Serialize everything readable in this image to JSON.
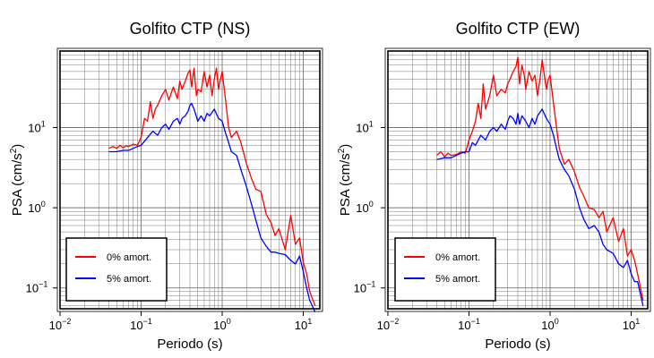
{
  "chart_data": [
    {
      "type": "line",
      "title": "Golfito CTP (NS)",
      "xlabel": "Periodo (s)",
      "ylabel": "PSA (cm/s²)",
      "xscale": "log",
      "yscale": "log",
      "xlim": [
        0.01,
        16
      ],
      "ylim": [
        0.055,
        90
      ],
      "x_ticks": [
        {
          "value": 0.01,
          "base": "10",
          "exp": "−2"
        },
        {
          "value": 0.1,
          "base": "10",
          "exp": "−1"
        },
        {
          "value": 1,
          "base": "10",
          "exp": "0"
        },
        {
          "value": 10,
          "base": "10",
          "exp": "1"
        }
      ],
      "y_ticks": [
        {
          "value": 0.1,
          "base": "10",
          "exp": "−1"
        },
        {
          "value": 1,
          "base": "10",
          "exp": "0"
        },
        {
          "value": 10,
          "base": "10",
          "exp": "1"
        }
      ],
      "grid": true,
      "legend_position": "bottom-left",
      "series": [
        {
          "name": "0% amort.",
          "color": "#ff0000",
          "x": [
            0.04,
            0.045,
            0.05,
            0.055,
            0.06,
            0.065,
            0.07,
            0.08,
            0.09,
            0.1,
            0.11,
            0.12,
            0.13,
            0.14,
            0.15,
            0.16,
            0.18,
            0.2,
            0.22,
            0.25,
            0.28,
            0.3,
            0.32,
            0.35,
            0.38,
            0.4,
            0.42,
            0.45,
            0.48,
            0.5,
            0.55,
            0.6,
            0.65,
            0.7,
            0.75,
            0.8,
            0.85,
            0.9,
            0.95,
            1.0,
            1.1,
            1.2,
            1.3,
            1.5,
            1.7,
            2.0,
            2.3,
            2.6,
            3.0,
            3.5,
            4.0,
            4.5,
            5.0,
            6.0,
            7.0,
            8.0,
            9.0,
            10.0,
            11.0,
            12.0,
            14.0
          ],
          "y": [
            5.5,
            5.8,
            5.5,
            6.0,
            5.6,
            5.9,
            5.8,
            6.2,
            6.0,
            7.5,
            13,
            12,
            21,
            13,
            17,
            19,
            25,
            30,
            22,
            32,
            23,
            38,
            30,
            38,
            48,
            52,
            32,
            55,
            25,
            30,
            28,
            50,
            32,
            45,
            25,
            40,
            55,
            30,
            40,
            50,
            22,
            10,
            7.5,
            9,
            6.5,
            3.5,
            2.3,
            1.7,
            1.6,
            0.82,
            0.65,
            0.45,
            0.55,
            0.3,
            0.8,
            0.35,
            0.42,
            0.21,
            0.15,
            0.09,
            0.06
          ]
        },
        {
          "name": "5% amort.",
          "color": "#0000ff",
          "x": [
            0.04,
            0.05,
            0.06,
            0.07,
            0.08,
            0.09,
            0.1,
            0.12,
            0.14,
            0.16,
            0.18,
            0.2,
            0.22,
            0.25,
            0.28,
            0.3,
            0.32,
            0.35,
            0.38,
            0.4,
            0.42,
            0.45,
            0.5,
            0.55,
            0.6,
            0.65,
            0.7,
            0.8,
            0.9,
            1.0,
            1.1,
            1.2,
            1.3,
            1.5,
            1.7,
            2.0,
            2.3,
            2.6,
            3.0,
            3.5,
            4.0,
            4.5,
            5.0,
            6.0,
            7.0,
            8.0,
            9.0,
            10.0,
            11.0,
            12.0,
            14.0
          ],
          "y": [
            5.0,
            5.0,
            5.2,
            5.2,
            5.5,
            5.8,
            6.0,
            7.5,
            9,
            8,
            10,
            11,
            9.5,
            12,
            13,
            11,
            13,
            14,
            16,
            19,
            20,
            17,
            12,
            14,
            12,
            15,
            14,
            17,
            13,
            12,
            8.5,
            6.5,
            5.0,
            4.5,
            3.0,
            1.8,
            1.1,
            0.7,
            0.42,
            0.33,
            0.28,
            0.28,
            0.27,
            0.26,
            0.22,
            0.2,
            0.25,
            0.16,
            0.1,
            0.07,
            0.05
          ]
        }
      ]
    },
    {
      "type": "line",
      "title": "Golfito CTP (EW)",
      "xlabel": "Periodo (s)",
      "ylabel": "PSA (cm/s²)",
      "xscale": "log",
      "yscale": "log",
      "xlim": [
        0.01,
        16
      ],
      "ylim": [
        0.055,
        90
      ],
      "x_ticks": [
        {
          "value": 0.01,
          "base": "10",
          "exp": "−2"
        },
        {
          "value": 0.1,
          "base": "10",
          "exp": "−1"
        },
        {
          "value": 1,
          "base": "10",
          "exp": "0"
        },
        {
          "value": 10,
          "base": "10",
          "exp": "1"
        }
      ],
      "y_ticks": [
        {
          "value": 0.1,
          "base": "10",
          "exp": "−1"
        },
        {
          "value": 1,
          "base": "10",
          "exp": "0"
        },
        {
          "value": 10,
          "base": "10",
          "exp": "1"
        }
      ],
      "grid": true,
      "legend_position": "bottom-left",
      "series": [
        {
          "name": "0% amort.",
          "color": "#ff0000",
          "x": [
            0.04,
            0.045,
            0.05,
            0.055,
            0.06,
            0.07,
            0.08,
            0.09,
            0.1,
            0.11,
            0.12,
            0.13,
            0.14,
            0.15,
            0.16,
            0.18,
            0.2,
            0.22,
            0.25,
            0.28,
            0.3,
            0.32,
            0.35,
            0.38,
            0.4,
            0.42,
            0.45,
            0.48,
            0.5,
            0.55,
            0.6,
            0.65,
            0.7,
            0.75,
            0.8,
            0.85,
            0.9,
            0.95,
            1.0,
            1.1,
            1.2,
            1.3,
            1.5,
            1.7,
            2.0,
            2.3,
            2.6,
            3.0,
            3.5,
            4.0,
            4.5,
            5.0,
            6.0,
            7.0,
            8.0,
            9.0,
            10.0,
            11.0,
            12.0,
            14.0
          ],
          "y": [
            4.5,
            5.0,
            4.3,
            4.8,
            4.5,
            4.6,
            5.0,
            4.8,
            7,
            9,
            12,
            20,
            13,
            35,
            17,
            25,
            45,
            25,
            30,
            27,
            35,
            40,
            50,
            58,
            75,
            35,
            60,
            45,
            30,
            50,
            38,
            45,
            25,
            40,
            70,
            45,
            30,
            40,
            45,
            20,
            10,
            5.5,
            3.5,
            4.0,
            2.8,
            1.8,
            1.4,
            1.0,
            0.95,
            0.75,
            0.9,
            0.5,
            0.75,
            0.38,
            0.55,
            0.25,
            0.3,
            0.22,
            0.15,
            0.07
          ]
        },
        {
          "name": "5% amort.",
          "color": "#0000ff",
          "x": [
            0.04,
            0.05,
            0.06,
            0.07,
            0.08,
            0.09,
            0.1,
            0.11,
            0.12,
            0.14,
            0.16,
            0.18,
            0.2,
            0.22,
            0.25,
            0.28,
            0.3,
            0.32,
            0.35,
            0.38,
            0.4,
            0.42,
            0.45,
            0.5,
            0.55,
            0.6,
            0.65,
            0.7,
            0.8,
            0.9,
            1.0,
            1.1,
            1.2,
            1.3,
            1.5,
            1.7,
            2.0,
            2.3,
            2.6,
            3.0,
            3.5,
            4.0,
            4.5,
            5.0,
            6.0,
            7.0,
            8.0,
            9.0,
            10.0,
            11.0,
            12.0,
            14.0
          ],
          "y": [
            4.0,
            4.2,
            4.2,
            4.5,
            4.8,
            5.0,
            5.0,
            6.5,
            6,
            8,
            7,
            9,
            10,
            9,
            11,
            9.5,
            12,
            14,
            13,
            11,
            15,
            11,
            14,
            12,
            10,
            13,
            11,
            14,
            17,
            13,
            11,
            8,
            5.5,
            4,
            3,
            2.5,
            1.7,
            1.0,
            0.72,
            0.55,
            0.6,
            0.5,
            0.35,
            0.3,
            0.27,
            0.2,
            0.18,
            0.22,
            0.15,
            0.12,
            0.12,
            0.06
          ]
        }
      ]
    }
  ]
}
